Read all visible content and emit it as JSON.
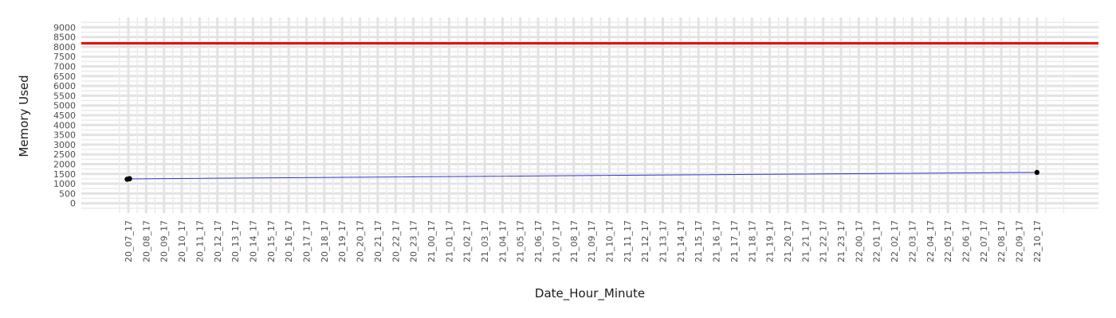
{
  "chart_data": {
    "type": "line",
    "title": "",
    "xlabel": "Date_Hour_Minute",
    "ylabel": "Memory Used",
    "categories": [
      "20_07_17",
      "20_08_17",
      "20_09_17",
      "20_10_17",
      "20_11_17",
      "20_12_17",
      "20_13_17",
      "20_14_17",
      "20_15_17",
      "20_16_17",
      "20_17_17",
      "20_18_17",
      "20_19_17",
      "20_20_17",
      "20_21_17",
      "20_22_17",
      "20_23_17",
      "21_00_17",
      "21_01_17",
      "21_02_17",
      "21_03_17",
      "21_04_17",
      "21_05_17",
      "21_06_17",
      "21_07_17",
      "21_08_17",
      "21_09_17",
      "21_10_17",
      "21_11_17",
      "21_12_17",
      "21_13_17",
      "21_14_17",
      "21_15_17",
      "21_16_17",
      "21_17_17",
      "21_18_17",
      "21_19_17",
      "21_20_17",
      "21_21_17",
      "21_22_17",
      "21_23_17",
      "22_00_17",
      "22_01_17",
      "22_02_17",
      "22_03_17",
      "22_04_17",
      "22_05_17",
      "22_06_17",
      "22_07_17",
      "22_08_17",
      "22_09_17",
      "22_10_17"
    ],
    "yticks": [
      0,
      500,
      1000,
      1500,
      2000,
      2500,
      3000,
      3500,
      4000,
      4500,
      5000,
      5500,
      6000,
      6500,
      7000,
      7500,
      8000,
      8500,
      9000
    ],
    "ylim": [
      -500,
      9500
    ],
    "grid": true,
    "series": [
      {
        "color": "#3333cc",
        "points": [
          {
            "x": "20_07_17",
            "y": 1230
          },
          {
            "x": "20_07_17",
            "y": 1260
          },
          {
            "x": "20_07_17",
            "y": 1250
          },
          {
            "x": "22_10_17",
            "y": 1580
          }
        ]
      }
    ],
    "hline": {
      "y": 8180,
      "color": "#ee0000"
    }
  }
}
